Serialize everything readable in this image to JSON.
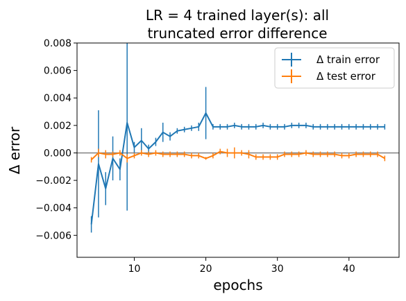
{
  "chart_data": {
    "type": "line",
    "title": [
      "LR = 4 trained layer(s): all",
      "truncated error difference"
    ],
    "xlabel": "epochs",
    "ylabel": "Δ error",
    "xlim": [
      2,
      47
    ],
    "ylim": [
      -0.0076,
      0.008
    ],
    "xticks": [
      10,
      20,
      30,
      40
    ],
    "yticks": [
      -0.006,
      -0.004,
      -0.002,
      0.0,
      0.002,
      0.004,
      0.006,
      0.008
    ],
    "ytick_labels": [
      "−0.006",
      "−0.004",
      "−0.002",
      "0.000",
      "0.002",
      "0.004",
      "0.006",
      "0.008"
    ],
    "reference_line": 0.0,
    "grid": false,
    "legend_position": "upper right",
    "x": [
      4,
      5,
      6,
      7,
      8,
      9,
      10,
      11,
      12,
      13,
      14,
      15,
      16,
      17,
      18,
      19,
      20,
      21,
      22,
      23,
      24,
      25,
      26,
      27,
      28,
      29,
      30,
      31,
      32,
      33,
      34,
      35,
      36,
      37,
      38,
      39,
      40,
      41,
      42,
      43,
      44,
      45
    ],
    "series": [
      {
        "name": "Δ train error",
        "color": "#1f77b4",
        "values": [
          -0.0052,
          -0.0008,
          -0.0026,
          -0.0004,
          -0.0012,
          0.0022,
          0.0004,
          0.0009,
          0.0003,
          0.0008,
          0.0015,
          0.0012,
          0.0016,
          0.0017,
          0.0018,
          0.0019,
          0.0029,
          0.0019,
          0.0019,
          0.0019,
          0.002,
          0.0019,
          0.0019,
          0.0019,
          0.002,
          0.0019,
          0.0019,
          0.0019,
          0.002,
          0.002,
          0.002,
          0.0019,
          0.0019,
          0.0019,
          0.0019,
          0.0019,
          0.0019,
          0.0019,
          0.0019,
          0.0019,
          0.0019,
          0.0019
        ],
        "errors": [
          0.0006,
          0.0039,
          0.0012,
          0.0016,
          0.0008,
          0.0064,
          0.0004,
          0.0009,
          0.0003,
          0.0003,
          0.0007,
          0.0003,
          0.0002,
          0.0002,
          0.0002,
          0.0003,
          0.0019,
          0.0002,
          0.0002,
          0.0002,
          0.0002,
          0.0002,
          0.0002,
          0.0002,
          0.0002,
          0.0002,
          0.0002,
          0.0002,
          0.0002,
          0.0002,
          0.0002,
          0.0002,
          0.0002,
          0.0002,
          0.0002,
          0.0002,
          0.0002,
          0.0002,
          0.0002,
          0.0002,
          0.0002,
          0.0002
        ]
      },
      {
        "name": "Δ test error",
        "color": "#ff7f0e",
        "values": [
          -0.0005,
          0.0,
          -0.0001,
          -0.0001,
          0.0,
          -0.0004,
          -0.0002,
          0.0,
          -0.0001,
          0.0,
          -0.0001,
          -0.0001,
          -0.0001,
          -0.0001,
          -0.0002,
          -0.0002,
          -0.0004,
          -0.0002,
          0.0001,
          0.0,
          0.0,
          0.0,
          -0.0001,
          -0.0003,
          -0.0003,
          -0.0003,
          -0.0003,
          -0.0001,
          -0.0001,
          -0.0001,
          0.0,
          -0.0001,
          -0.0001,
          -0.0001,
          -0.0001,
          -0.0002,
          -0.0002,
          -0.0001,
          -0.0001,
          -0.0001,
          -0.0001,
          -0.0004
        ],
        "errors": [
          0.0002,
          0.0003,
          0.0003,
          0.0002,
          0.0002,
          0.0003,
          0.0002,
          0.0002,
          0.0002,
          0.0002,
          0.0002,
          0.0002,
          0.0002,
          0.0002,
          0.0002,
          0.0002,
          0.0001,
          0.0002,
          0.0002,
          0.0003,
          0.0004,
          0.0002,
          0.0003,
          0.0002,
          0.0002,
          0.0002,
          0.0002,
          0.0002,
          0.0002,
          0.0002,
          0.0002,
          0.0002,
          0.0002,
          0.0002,
          0.0002,
          0.0002,
          0.0002,
          0.0002,
          0.0002,
          0.0002,
          0.0002,
          0.0002
        ]
      }
    ]
  }
}
